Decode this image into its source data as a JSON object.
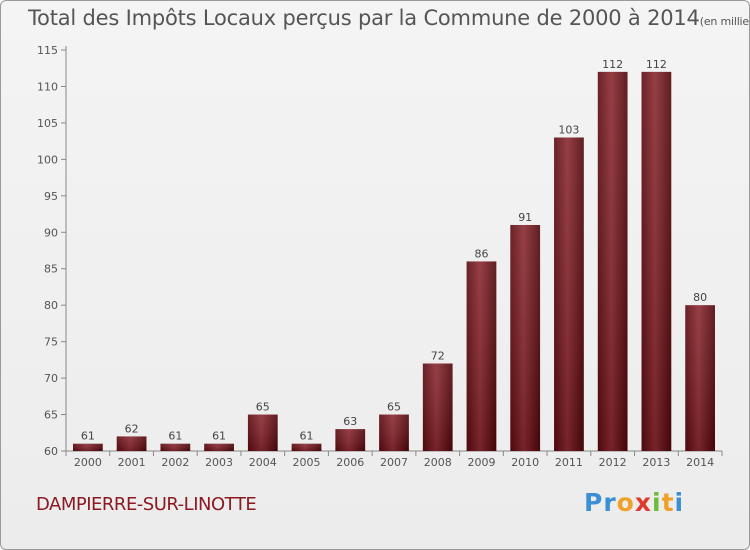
{
  "header": {
    "title": "Total des Impôts Locaux perçus par la Commune de 2000 à 2014",
    "unit": "(en milliers d'€)"
  },
  "footer": {
    "commune": "DAMPIERRE-SUR-LINOTTE",
    "logo_letters": [
      "P",
      "r",
      "o",
      "x",
      "i",
      "t",
      "i"
    ],
    "logo_colors": [
      "#3b8fd4",
      "#3b8fd4",
      "#f0a12a",
      "#e03a2f",
      "#6dbb3b",
      "#f0a12a",
      "#3b8fd4"
    ]
  },
  "chart_data": {
    "type": "bar",
    "title": "Total des Impôts Locaux perçus par la Commune de 2000 à 2014",
    "xlabel": "",
    "ylabel": "",
    "categories": [
      "2000",
      "2001",
      "2002",
      "2003",
      "2004",
      "2005",
      "2006",
      "2007",
      "2008",
      "2009",
      "2010",
      "2011",
      "2012",
      "2013",
      "2014"
    ],
    "values": [
      61,
      62,
      61,
      61,
      65,
      61,
      63,
      65,
      72,
      86,
      91,
      103,
      112,
      112,
      80
    ],
    "ylim": [
      60,
      115
    ],
    "yticks": [
      60,
      65,
      70,
      75,
      80,
      85,
      90,
      95,
      100,
      105,
      110,
      115
    ],
    "grid": false,
    "bar_color": "#6e0d12",
    "bar_highlight": "#8a2a31"
  }
}
